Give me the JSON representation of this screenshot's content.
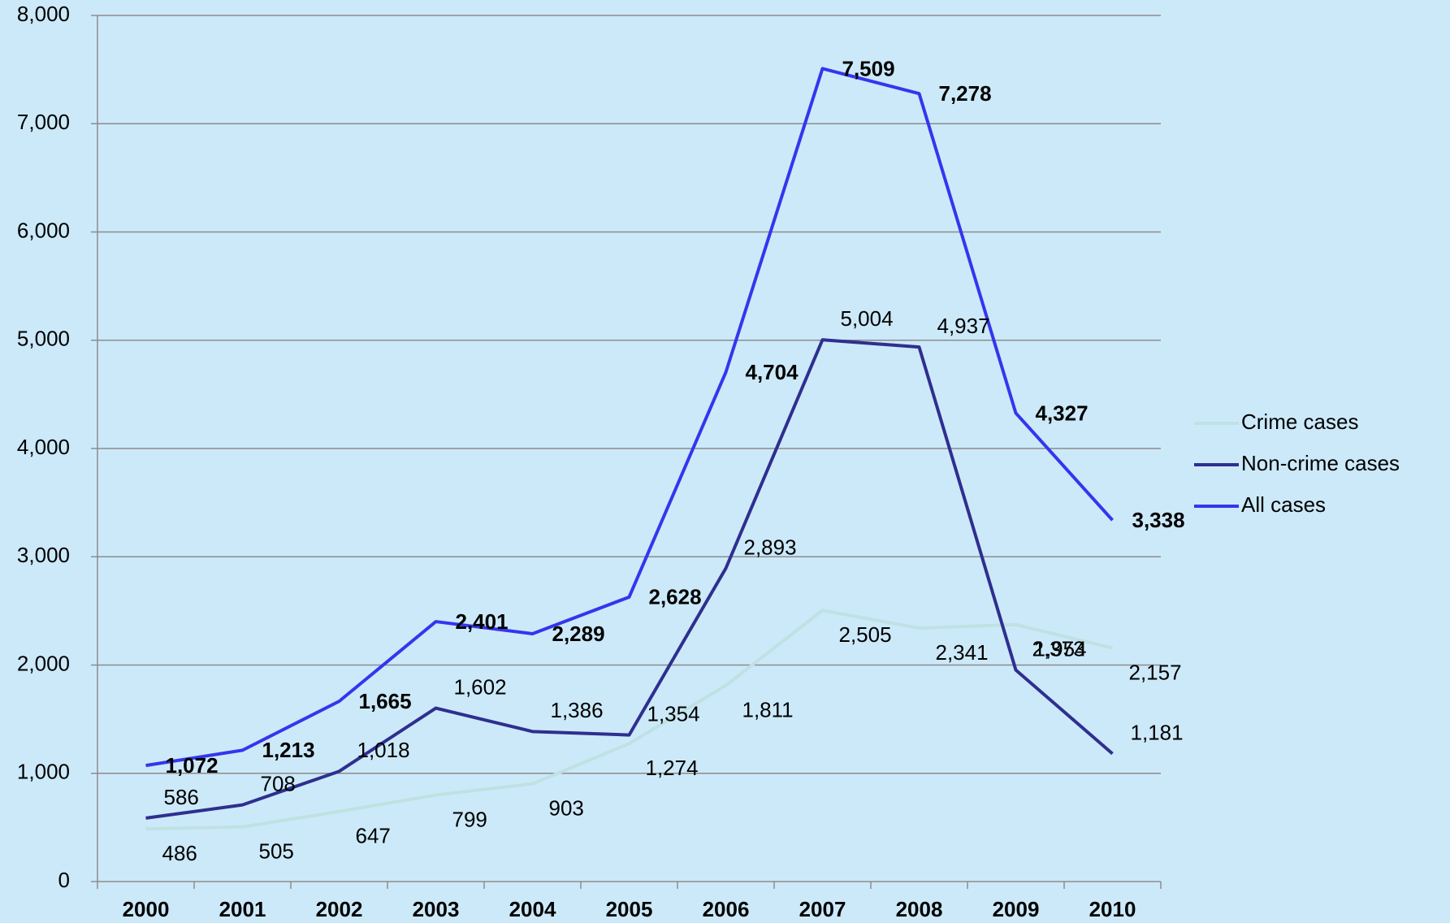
{
  "chart_data": {
    "type": "line",
    "categories": [
      "2000",
      "2001",
      "2002",
      "2003",
      "2004",
      "2005",
      "2006",
      "2007",
      "2008",
      "2009",
      "2010"
    ],
    "series": [
      {
        "name": "Crime cases",
        "color": "#bfe1e3",
        "values": [
          486,
          505,
          647,
          799,
          903,
          1274,
          1811,
          2505,
          2341,
          2373,
          2157
        ],
        "value_labels": [
          "486",
          "505",
          "647",
          "799",
          "903",
          "1,274",
          "1,811",
          "2,505",
          "2,341",
          "2,373",
          "2,157"
        ]
      },
      {
        "name": "Non-crime cases",
        "color": "#2e2f8f",
        "values": [
          586,
          708,
          1018,
          1602,
          1386,
          1354,
          2893,
          5004,
          4937,
          1954,
          1181
        ],
        "value_labels": [
          "586",
          "708",
          "1,018",
          "1,602",
          "1,386",
          "1,354",
          "2,893",
          "5,004",
          "4,937",
          "1,954",
          "1,181"
        ]
      },
      {
        "name": "All cases",
        "color": "#3535ee",
        "values": [
          1072,
          1213,
          1665,
          2401,
          2289,
          2628,
          4704,
          7509,
          7278,
          4327,
          3338
        ],
        "value_labels": [
          "1,072",
          "1,213",
          "1,665",
          "2,401",
          "2,289",
          "2,628",
          "4,704",
          "7,509",
          "7,278",
          "4,327",
          "3,338"
        ]
      }
    ],
    "ylim": [
      0,
      8000
    ],
    "yticks": [
      0,
      {
        "value": 1000,
        "label": "1,000"
      },
      {
        "value": 2000,
        "label": "2,000"
      },
      {
        "value": 3000,
        "label": "3,000"
      },
      {
        "value": 4000,
        "label": "4,000"
      },
      {
        "value": 5000,
        "label": "5,000"
      },
      {
        "value": 6000,
        "label": "6,000"
      },
      {
        "value": 7000,
        "label": "7,000"
      },
      {
        "value": 8000,
        "label": "8,000"
      }
    ],
    "grid": true,
    "legend": "right"
  }
}
